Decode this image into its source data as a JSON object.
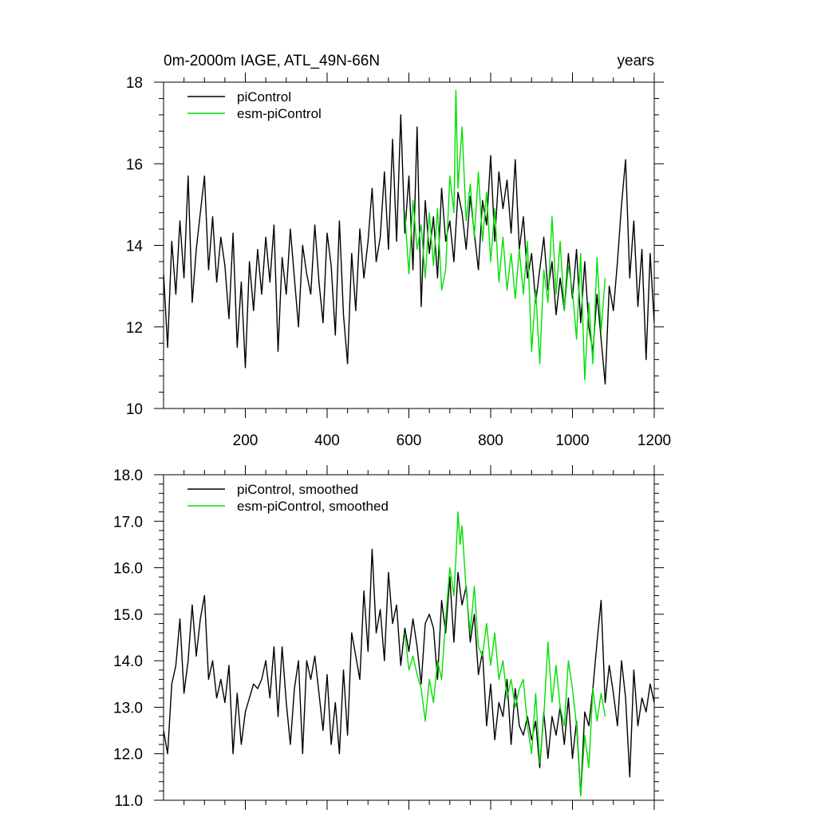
{
  "colors": {
    "piControl": "#000000",
    "esm_piControl": "#00e000"
  },
  "chart_data": [
    {
      "type": "line",
      "title": "0m-2000m IAGE, ATL_49N-66N",
      "right_title": "years",
      "xlim": [
        0,
        1200
      ],
      "ylim": [
        10,
        18
      ],
      "x_ticks": [
        200,
        400,
        600,
        800,
        1000,
        1200
      ],
      "x_tick_labels": [
        "200",
        "400",
        "600",
        "800",
        "1000",
        "1200"
      ],
      "y_ticks": [
        10,
        12,
        14,
        16,
        18
      ],
      "y_tick_labels": [
        "10",
        "12",
        "14",
        "16",
        "18"
      ],
      "legend": [
        "piControl",
        "esm-piControl"
      ],
      "legend_position": "top-left",
      "series": [
        {
          "name": "piControl",
          "color": "#000000",
          "x": [
            0,
            10,
            20,
            30,
            40,
            50,
            60,
            70,
            80,
            90,
            100,
            110,
            120,
            130,
            140,
            150,
            160,
            170,
            180,
            190,
            200,
            210,
            220,
            230,
            240,
            250,
            260,
            270,
            280,
            290,
            300,
            310,
            320,
            330,
            340,
            350,
            360,
            370,
            380,
            390,
            400,
            410,
            420,
            430,
            440,
            450,
            460,
            470,
            480,
            490,
            500,
            510,
            520,
            530,
            540,
            550,
            560,
            570,
            580,
            590,
            600,
            610,
            620,
            630,
            640,
            650,
            660,
            670,
            680,
            690,
            700,
            710,
            720,
            730,
            740,
            750,
            760,
            770,
            780,
            790,
            800,
            810,
            820,
            830,
            840,
            850,
            860,
            870,
            880,
            890,
            900,
            910,
            920,
            930,
            940,
            950,
            960,
            970,
            980,
            990,
            1000,
            1010,
            1020,
            1030,
            1040,
            1050,
            1060,
            1070,
            1080,
            1090,
            1100,
            1110,
            1120,
            1130,
            1140,
            1150,
            1160,
            1170,
            1180,
            1190,
            1200
          ],
          "values": [
            13.3,
            11.5,
            14.1,
            12.8,
            14.6,
            13.2,
            15.7,
            12.6,
            13.9,
            14.8,
            15.7,
            13.4,
            14.7,
            13.1,
            14.2,
            13.5,
            12.2,
            14.3,
            11.5,
            13.1,
            11.0,
            13.6,
            12.4,
            13.9,
            12.8,
            14.2,
            13.1,
            14.5,
            11.4,
            13.7,
            12.8,
            14.4,
            13.2,
            12.0,
            14.0,
            13.3,
            12.8,
            14.5,
            13.1,
            12.1,
            14.3,
            13.5,
            11.8,
            14.6,
            12.3,
            11.1,
            13.8,
            12.4,
            14.4,
            13.2,
            14.1,
            15.4,
            13.6,
            14.2,
            15.8,
            13.9,
            16.6,
            14.1,
            17.2,
            14.3,
            15.7,
            13.4,
            16.9,
            12.5,
            15.1,
            13.8,
            14.7,
            13.2,
            15.4,
            14.1,
            14.6,
            13.6,
            15.3,
            14.8,
            13.9,
            15.2,
            14.3,
            13.4,
            15.1,
            14.5,
            16.2,
            14.1,
            15.8,
            14.9,
            15.6,
            14.3,
            16.1,
            13.9,
            14.7,
            13.2,
            13.8,
            12.6,
            13.4,
            14.2,
            12.9,
            13.6,
            12.3,
            13.2,
            12.4,
            13.8,
            12.7,
            13.9,
            12.1,
            13.6,
            12.0,
            11.4,
            12.8,
            11.7,
            10.6,
            13.0,
            12.4,
            13.6,
            15.0,
            16.1,
            13.2,
            14.6,
            12.5,
            13.9,
            11.2,
            13.8,
            12.1
          ]
        },
        {
          "name": "esm-piControl",
          "color": "#00e000",
          "x": [
            590,
            600,
            610,
            620,
            630,
            640,
            650,
            660,
            670,
            680,
            690,
            700,
            710,
            715,
            720,
            730,
            740,
            750,
            760,
            770,
            780,
            790,
            800,
            810,
            820,
            830,
            840,
            850,
            860,
            870,
            880,
            890,
            900,
            910,
            920,
            930,
            940,
            950,
            960,
            970,
            980,
            990,
            1000,
            1010,
            1020,
            1030,
            1040,
            1050,
            1060,
            1070,
            1080
          ],
          "values": [
            14.8,
            13.3,
            15.1,
            13.9,
            14.5,
            13.2,
            14.8,
            13.5,
            14.9,
            12.9,
            13.4,
            15.7,
            14.8,
            17.8,
            15.4,
            16.9,
            14.6,
            15.5,
            14.2,
            15.8,
            14.1,
            15.3,
            13.6,
            14.9,
            13.1,
            14.2,
            12.9,
            13.8,
            12.7,
            13.9,
            12.8,
            14.1,
            11.4,
            12.9,
            11.1,
            13.4,
            12.6,
            14.7,
            12.8,
            14.1,
            12.4,
            13.5,
            12.9,
            11.7,
            13.8,
            10.7,
            12.6,
            11.1,
            13.7,
            11.9,
            13.2
          ]
        }
      ]
    },
    {
      "type": "line",
      "xlim": [
        0,
        1200
      ],
      "ylim": [
        11,
        18
      ],
      "x_ticks": [
        200,
        400,
        600,
        800,
        1000,
        1200
      ],
      "y_ticks": [
        11,
        12,
        13,
        14,
        15,
        16,
        17,
        18
      ],
      "y_tick_labels": [
        "11.0",
        "12.0",
        "13.0",
        "14.0",
        "15.0",
        "16.0",
        "17.0",
        "18.0"
      ],
      "legend": [
        "piControl, smoothed",
        "esm-piControl, smoothed"
      ],
      "legend_position": "top-left",
      "series": [
        {
          "name": "piControl, smoothed",
          "color": "#000000",
          "x": [
            0,
            10,
            20,
            30,
            40,
            50,
            60,
            70,
            80,
            90,
            100,
            110,
            120,
            130,
            140,
            150,
            160,
            170,
            180,
            190,
            200,
            210,
            220,
            230,
            240,
            250,
            260,
            270,
            280,
            290,
            300,
            310,
            320,
            330,
            340,
            350,
            360,
            370,
            380,
            390,
            400,
            410,
            420,
            430,
            440,
            450,
            460,
            470,
            480,
            490,
            500,
            510,
            520,
            530,
            540,
            550,
            560,
            570,
            580,
            590,
            600,
            610,
            620,
            630,
            640,
            650,
            660,
            670,
            680,
            690,
            700,
            710,
            720,
            730,
            740,
            750,
            760,
            770,
            780,
            790,
            800,
            810,
            820,
            830,
            840,
            850,
            860,
            870,
            880,
            890,
            900,
            910,
            920,
            930,
            940,
            950,
            960,
            970,
            980,
            990,
            1000,
            1010,
            1020,
            1030,
            1040,
            1050,
            1060,
            1070,
            1080,
            1090,
            1100,
            1110,
            1120,
            1130,
            1140,
            1150,
            1160,
            1170,
            1180,
            1190,
            1200
          ],
          "values": [
            12.5,
            12.0,
            13.5,
            13.9,
            14.9,
            13.3,
            14.0,
            15.2,
            14.1,
            14.9,
            15.4,
            13.6,
            14.0,
            13.2,
            13.6,
            13.1,
            13.9,
            12.0,
            13.3,
            12.2,
            12.9,
            13.2,
            13.5,
            13.4,
            13.6,
            14.0,
            13.2,
            14.3,
            12.8,
            14.3,
            13.1,
            12.2,
            13.4,
            14.0,
            12.0,
            14.0,
            13.6,
            14.1,
            13.3,
            12.5,
            13.7,
            12.2,
            13.1,
            12.0,
            13.8,
            12.4,
            14.6,
            14.1,
            13.6,
            15.5,
            14.2,
            16.4,
            14.6,
            15.1,
            14.0,
            15.9,
            14.8,
            15.2,
            13.9,
            14.7,
            14.2,
            14.9,
            14.3,
            13.5,
            14.8,
            15.0,
            14.7,
            13.6,
            15.3,
            14.6,
            15.8,
            14.4,
            15.9,
            15.2,
            15.6,
            14.4,
            15.0,
            13.7,
            14.2,
            12.6,
            13.5,
            12.3,
            13.1,
            12.8,
            13.6,
            12.2,
            13.4,
            12.6,
            12.4,
            12.8,
            12.3,
            12.7,
            11.7,
            12.9,
            11.9,
            12.8,
            12.4,
            13.0,
            12.2,
            13.2,
            11.9,
            12.7,
            11.1,
            12.9,
            12.6,
            13.4,
            14.4,
            15.3,
            13.1,
            13.9,
            13.3,
            12.6,
            14.0,
            13.2,
            11.5,
            13.8,
            12.6,
            13.2,
            12.9,
            13.5,
            13.1
          ]
        },
        {
          "name": "esm-piControl, smoothed",
          "color": "#00e000",
          "x": [
            590,
            600,
            610,
            620,
            630,
            640,
            650,
            660,
            670,
            680,
            690,
            700,
            710,
            715,
            720,
            725,
            730,
            740,
            750,
            760,
            770,
            780,
            790,
            800,
            810,
            820,
            830,
            840,
            850,
            860,
            870,
            880,
            890,
            900,
            910,
            920,
            930,
            940,
            950,
            960,
            970,
            980,
            990,
            1000,
            1010,
            1020,
            1030,
            1040,
            1050,
            1060,
            1070,
            1080
          ],
          "values": [
            14.6,
            13.8,
            14.1,
            13.7,
            13.4,
            12.7,
            13.6,
            13.1,
            14.0,
            13.6,
            14.9,
            16.0,
            15.4,
            16.2,
            17.2,
            16.5,
            16.9,
            15.5,
            14.6,
            15.6,
            14.3,
            14.1,
            14.8,
            13.9,
            14.6,
            13.6,
            14.0,
            13.2,
            13.6,
            13.0,
            13.4,
            13.6,
            12.6,
            12.0,
            13.3,
            11.8,
            12.8,
            14.4,
            13.1,
            13.9,
            13.0,
            12.6,
            14.0,
            13.4,
            12.6,
            11.1,
            12.4,
            11.7,
            13.4,
            12.7,
            13.3,
            12.8
          ]
        }
      ]
    }
  ]
}
